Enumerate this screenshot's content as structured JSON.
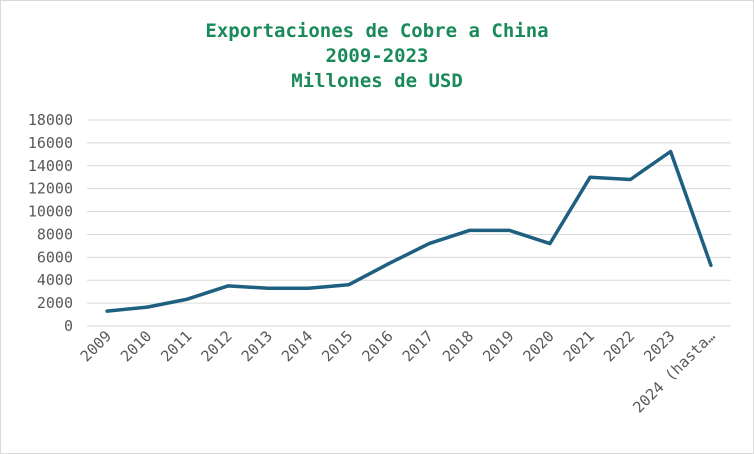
{
  "chart_data": {
    "type": "line",
    "title_lines": [
      "Exportaciones de Cobre a China",
      "2009-2023",
      "Millones de USD"
    ],
    "categories": [
      "2009",
      "2010",
      "2011",
      "2012",
      "2013",
      "2014",
      "2015",
      "2016",
      "2017",
      "2018",
      "2019",
      "2020",
      "2021",
      "2022",
      "2023",
      "2024 (hasta…"
    ],
    "series": [
      {
        "values": [
          1300,
          1650,
          2350,
          3500,
          3300,
          3300,
          3600,
          5450,
          7200,
          8350,
          8350,
          7200,
          13000,
          12800,
          15250,
          5300
        ]
      }
    ],
    "xlabel": "",
    "ylabel": "",
    "ylim": [
      0,
      18000
    ],
    "yticks": [
      0,
      2000,
      4000,
      6000,
      8000,
      10000,
      12000,
      14000,
      16000,
      18000
    ],
    "grid": true,
    "legend": "none"
  },
  "colors": {
    "title": "#1a8a5a",
    "line": "#1f5f7f",
    "grid": "#d9d9d9",
    "tick_label": "#595959"
  }
}
